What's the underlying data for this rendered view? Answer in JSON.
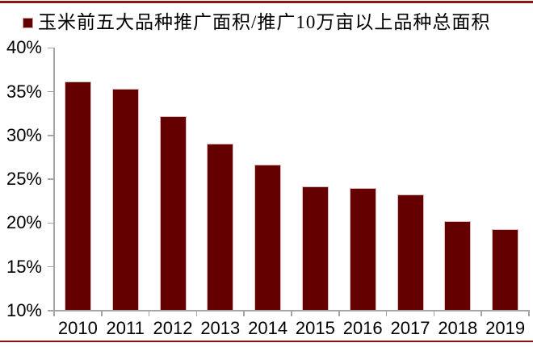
{
  "legend": {
    "label": "玉米前五大品种推广面积/推广10万亩以上品种总面积"
  },
  "styles": {
    "background": "#FFFFFF",
    "rule_color": "#8B1418",
    "bar_fill": "#650000",
    "bar_border": "#D9BCBC",
    "axis_color": "#A6A6A6",
    "text_color": "#000000"
  },
  "chart_data": {
    "type": "bar",
    "title": "",
    "series_name": "玉米前五大品种推广面积/推广10万亩以上品种总面积",
    "categories": [
      "2010",
      "2011",
      "2012",
      "2013",
      "2014",
      "2015",
      "2016",
      "2017",
      "2018",
      "2019"
    ],
    "values": [
      36.2,
      35.3,
      32.2,
      29.1,
      26.7,
      24.2,
      24.0,
      23.3,
      20.2,
      19.3
    ],
    "unit": "%",
    "xlabel": "",
    "ylabel": "",
    "ylim": [
      10,
      40
    ],
    "ytick_values": [
      10,
      15,
      20,
      25,
      30,
      35,
      40
    ],
    "ytick_labels": [
      "10%",
      "15%",
      "20%",
      "25%",
      "30%",
      "35%",
      "40%"
    ],
    "grid": false,
    "legend_position": "top-left",
    "bar_color": "#650000",
    "axis_color": "#A6A6A6"
  }
}
